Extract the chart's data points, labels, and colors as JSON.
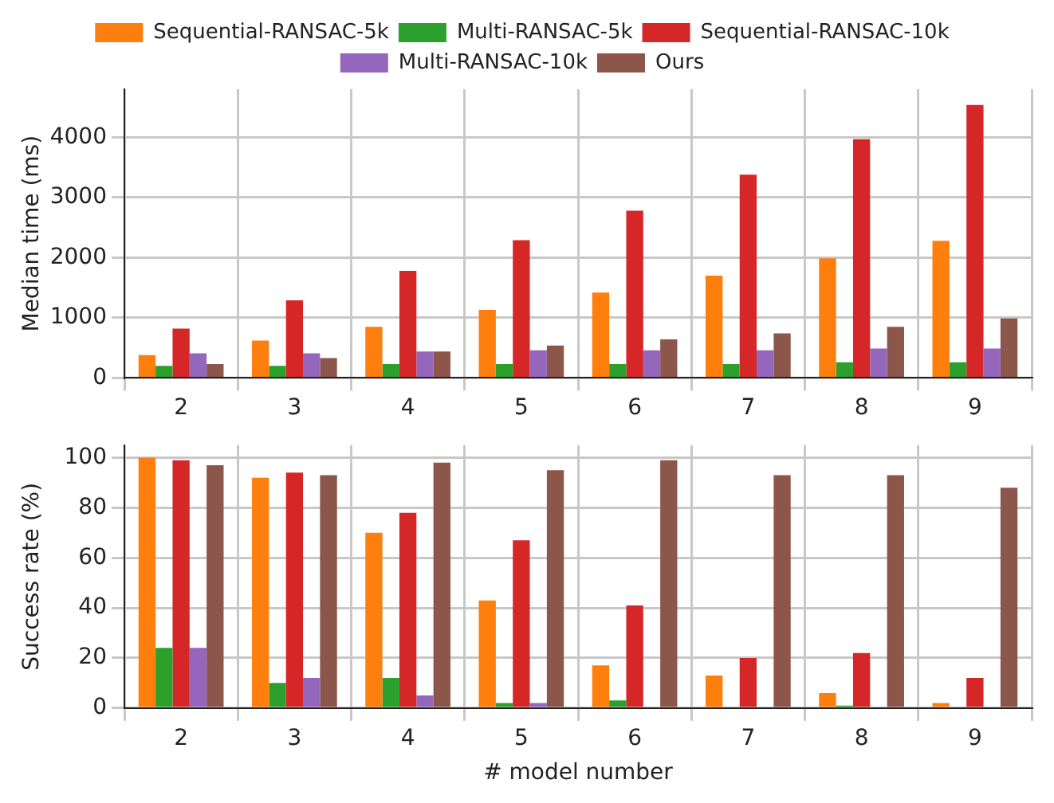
{
  "chart_data": [
    {
      "type": "bar",
      "ylabel": "Median time (ms)",
      "categories": [
        "2",
        "3",
        "4",
        "5",
        "6",
        "7",
        "8",
        "9"
      ],
      "ylim": [
        0,
        4800
      ],
      "yticks": [
        0,
        1000,
        2000,
        3000,
        4000
      ],
      "grid": true,
      "legend": "top",
      "series": [
        {
          "name": "Sequential-RANSAC-5k",
          "color": "#ff7f0e",
          "values": [
            380,
            620,
            850,
            1130,
            1420,
            1700,
            1990,
            2280
          ]
        },
        {
          "name": "Multi-RANSAC-5k",
          "color": "#2ca02c",
          "values": [
            200,
            200,
            230,
            230,
            230,
            230,
            260,
            260
          ]
        },
        {
          "name": "Sequential-RANSAC-10k",
          "color": "#d62728",
          "values": [
            820,
            1290,
            1780,
            2290,
            2780,
            3380,
            3970,
            4540
          ]
        },
        {
          "name": "Multi-RANSAC-10k",
          "color": "#9467bd",
          "values": [
            410,
            410,
            440,
            460,
            460,
            460,
            490,
            490
          ]
        },
        {
          "name": "Ours",
          "color": "#8c564b",
          "values": [
            230,
            330,
            440,
            540,
            640,
            740,
            850,
            990
          ]
        }
      ]
    },
    {
      "type": "bar",
      "ylabel": "Success rate (%)",
      "xlabel": "# model number",
      "categories": [
        "2",
        "3",
        "4",
        "5",
        "6",
        "7",
        "8",
        "9"
      ],
      "ylim": [
        0,
        105
      ],
      "yticks": [
        0,
        20,
        40,
        60,
        80,
        100
      ],
      "grid": true,
      "series": [
        {
          "color": "#ff7f0e",
          "values": [
            100,
            92,
            70,
            43,
            17,
            13,
            6,
            2
          ]
        },
        {
          "color": "#2ca02c",
          "values": [
            24,
            10,
            12,
            2,
            3,
            0,
            1,
            null
          ]
        },
        {
          "color": "#d62728",
          "values": [
            99,
            94,
            78,
            67,
            41,
            20,
            22,
            12
          ]
        },
        {
          "color": "#9467bd",
          "values": [
            24,
            12,
            5,
            2,
            0,
            0,
            0,
            0
          ]
        },
        {
          "color": "#8c564b",
          "values": [
            97,
            93,
            98,
            95,
            99,
            93,
            93,
            88
          ]
        }
      ]
    }
  ]
}
